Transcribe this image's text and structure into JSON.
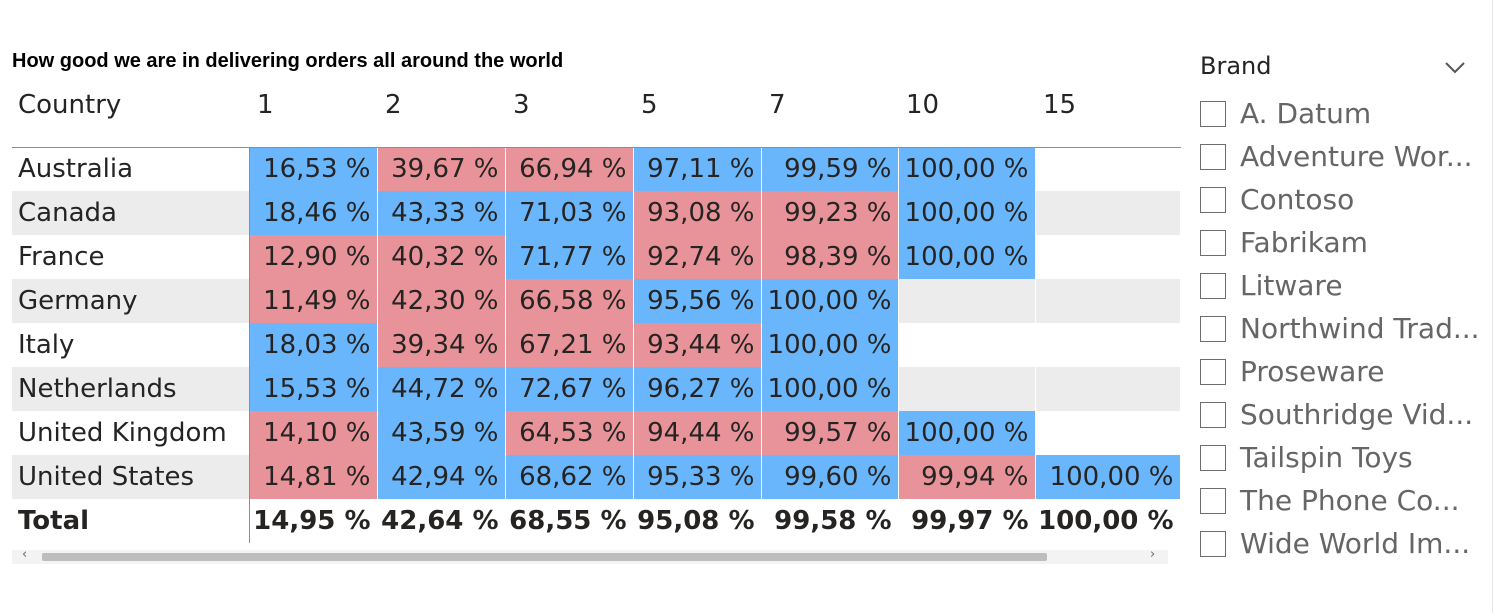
{
  "matrix": {
    "title": "How good we are in delivering orders all around the world",
    "row_header": "Country",
    "columns": [
      "1",
      "2",
      "3",
      "5",
      "7",
      "10",
      "15"
    ],
    "rows": [
      {
        "country": "Australia",
        "cells": [
          {
            "text": "16,53 %",
            "color": "blue"
          },
          {
            "text": "39,67 %",
            "color": "red"
          },
          {
            "text": "66,94 %",
            "color": "red"
          },
          {
            "text": "97,11 %",
            "color": "blue"
          },
          {
            "text": "99,59 %",
            "color": "blue"
          },
          {
            "text": "100,00 %",
            "color": "blue"
          },
          {
            "text": "",
            "color": "none"
          }
        ]
      },
      {
        "country": "Canada",
        "cells": [
          {
            "text": "18,46 %",
            "color": "blue"
          },
          {
            "text": "43,33 %",
            "color": "blue"
          },
          {
            "text": "71,03 %",
            "color": "blue"
          },
          {
            "text": "93,08 %",
            "color": "red"
          },
          {
            "text": "99,23 %",
            "color": "red"
          },
          {
            "text": "100,00 %",
            "color": "blue"
          },
          {
            "text": "",
            "color": "none"
          }
        ]
      },
      {
        "country": "France",
        "cells": [
          {
            "text": "12,90 %",
            "color": "red"
          },
          {
            "text": "40,32 %",
            "color": "red"
          },
          {
            "text": "71,77 %",
            "color": "blue"
          },
          {
            "text": "92,74 %",
            "color": "red"
          },
          {
            "text": "98,39 %",
            "color": "red"
          },
          {
            "text": "100,00 %",
            "color": "blue"
          },
          {
            "text": "",
            "color": "none"
          }
        ]
      },
      {
        "country": "Germany",
        "cells": [
          {
            "text": "11,49 %",
            "color": "red"
          },
          {
            "text": "42,30 %",
            "color": "red"
          },
          {
            "text": "66,58 %",
            "color": "red"
          },
          {
            "text": "95,56 %",
            "color": "blue"
          },
          {
            "text": "100,00 %",
            "color": "blue"
          },
          {
            "text": "",
            "color": "none"
          },
          {
            "text": "",
            "color": "none"
          }
        ]
      },
      {
        "country": "Italy",
        "cells": [
          {
            "text": "18,03 %",
            "color": "blue"
          },
          {
            "text": "39,34 %",
            "color": "red"
          },
          {
            "text": "67,21 %",
            "color": "red"
          },
          {
            "text": "93,44 %",
            "color": "red"
          },
          {
            "text": "100,00 %",
            "color": "blue"
          },
          {
            "text": "",
            "color": "none"
          },
          {
            "text": "",
            "color": "none"
          }
        ]
      },
      {
        "country": "Netherlands",
        "cells": [
          {
            "text": "15,53 %",
            "color": "blue"
          },
          {
            "text": "44,72 %",
            "color": "blue"
          },
          {
            "text": "72,67 %",
            "color": "blue"
          },
          {
            "text": "96,27 %",
            "color": "blue"
          },
          {
            "text": "100,00 %",
            "color": "blue"
          },
          {
            "text": "",
            "color": "none"
          },
          {
            "text": "",
            "color": "none"
          }
        ]
      },
      {
        "country": "United Kingdom",
        "cells": [
          {
            "text": "14,10 %",
            "color": "red"
          },
          {
            "text": "43,59 %",
            "color": "blue"
          },
          {
            "text": "64,53 %",
            "color": "red"
          },
          {
            "text": "94,44 %",
            "color": "red"
          },
          {
            "text": "99,57 %",
            "color": "red"
          },
          {
            "text": "100,00 %",
            "color": "blue"
          },
          {
            "text": "",
            "color": "none"
          }
        ]
      },
      {
        "country": "United States",
        "cells": [
          {
            "text": "14,81 %",
            "color": "red"
          },
          {
            "text": "42,94 %",
            "color": "blue"
          },
          {
            "text": "68,62 %",
            "color": "blue"
          },
          {
            "text": "95,33 %",
            "color": "blue"
          },
          {
            "text": "99,60 %",
            "color": "blue"
          },
          {
            "text": "99,94 %",
            "color": "red"
          },
          {
            "text": "100,00 %",
            "color": "blue"
          }
        ]
      }
    ],
    "total": {
      "label": "Total",
      "values": [
        "14,95 %",
        "42,64 %",
        "68,55 %",
        "95,08 %",
        "99,58 %",
        "99,97 %",
        "100,00 %"
      ]
    },
    "scroll_left": "‹",
    "scroll_right": "›"
  },
  "slicer": {
    "title": "Brand",
    "items": [
      "A. Datum",
      "Adventure Wor...",
      "Contoso",
      "Fabrikam",
      "Litware",
      "Northwind Trad...",
      "Proseware",
      "Southridge Vid...",
      "Tailspin Toys",
      "The Phone Co...",
      "Wide World Im..."
    ]
  },
  "colors": {
    "blue": "#6ab6fc",
    "red": "#e8939a",
    "row_alt": "#ececec",
    "header_line": "#3bb3a7"
  }
}
